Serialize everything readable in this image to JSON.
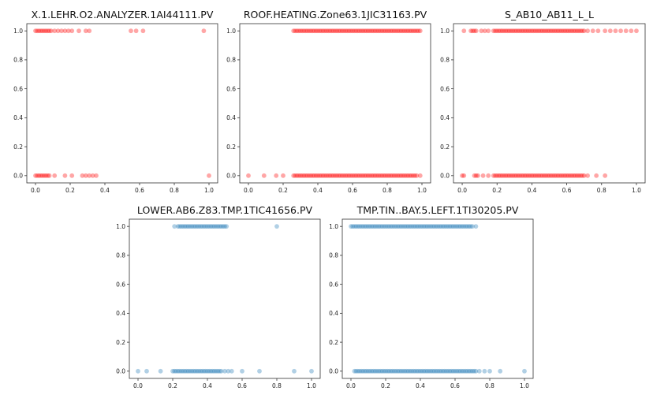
{
  "colors": {
    "red": "#ff0000",
    "blue": "#1f77b4",
    "frame": "#333333"
  },
  "chart_data": [
    {
      "type": "scatter",
      "title": "X.1.LEHR.O2.ANALYZER.1AI44111.PV",
      "color": "#ff0000",
      "xlim": [
        -0.05,
        1.05
      ],
      "ylim": [
        -0.05,
        1.05
      ],
      "xticks": [
        0.0,
        0.2,
        0.4,
        0.6,
        0.8,
        1.0
      ],
      "xtick_labels": [
        "0.0",
        "0.2",
        "0.4",
        "0.6",
        "0.8",
        "1.0"
      ],
      "yticks": [
        0.0,
        0.2,
        0.4,
        0.6,
        0.8,
        1.0
      ],
      "ytick_labels": [
        "0.0",
        "0.2",
        "0.4",
        "0.6",
        "0.8",
        "1.0"
      ],
      "series": [
        {
          "y": 1,
          "dense": [
            [
              0.0,
              0.08
            ]
          ],
          "x": [
            0.09,
            0.11,
            0.13,
            0.15,
            0.17,
            0.19,
            0.21,
            0.25,
            0.29,
            0.31,
            0.55,
            0.58,
            0.62,
            0.97
          ]
        },
        {
          "y": 0,
          "dense": [
            [
              0.0,
              0.07
            ]
          ],
          "x": [
            0.08,
            0.11,
            0.17,
            0.21,
            0.27,
            0.29,
            0.31,
            0.33,
            0.35,
            1.0
          ]
        }
      ]
    },
    {
      "type": "scatter",
      "title": "ROOF.HEATING.Zone63.1JIC31163.PV",
      "color": "#ff0000",
      "xlim": [
        -0.05,
        1.05
      ],
      "ylim": [
        -0.05,
        1.05
      ],
      "xticks": [
        0.0,
        0.2,
        0.4,
        0.6,
        0.8,
        1.0
      ],
      "xtick_labels": [
        "0.0",
        "0.2",
        "0.4",
        "0.6",
        "0.8",
        "1.0"
      ],
      "yticks": [
        0.0,
        0.2,
        0.4,
        0.6,
        0.8,
        1.0
      ],
      "ytick_labels": [
        "0.0",
        "0.2",
        "0.4",
        "0.6",
        "0.8",
        "1.0"
      ],
      "series": [
        {
          "y": 1,
          "dense": [
            [
              0.26,
              0.99
            ]
          ],
          "x": []
        },
        {
          "y": 0,
          "dense": [
            [
              0.26,
              0.96
            ]
          ],
          "x": [
            0.0,
            0.09,
            0.16,
            0.2,
            0.97,
            0.99
          ]
        }
      ]
    },
    {
      "type": "scatter",
      "title": "S_AB10_AB11_L_L",
      "color": "#ff0000",
      "xlim": [
        -0.05,
        1.05
      ],
      "ylim": [
        -0.05,
        1.05
      ],
      "xticks": [
        0.0,
        0.2,
        0.4,
        0.6,
        0.8,
        1.0
      ],
      "xtick_labels": [
        "0.0",
        "0.2",
        "0.4",
        "0.6",
        "0.8",
        "1.0"
      ],
      "yticks": [
        0.0,
        0.2,
        0.4,
        0.6,
        0.8,
        1.0
      ],
      "ytick_labels": [
        "0.0",
        "0.2",
        "0.4",
        "0.6",
        "0.8",
        "1.0"
      ],
      "series": [
        {
          "y": 1,
          "dense": [
            [
              0.05,
              0.08
            ],
            [
              0.18,
              0.7
            ]
          ],
          "x": [
            0.01,
            0.11,
            0.13,
            0.15,
            0.72,
            0.75,
            0.78,
            0.82,
            0.85,
            0.88,
            0.91,
            0.94,
            0.97,
            1.0
          ]
        },
        {
          "y": 0,
          "dense": [
            [
              0.07,
              0.09
            ],
            [
              0.18,
              0.7
            ]
          ],
          "x": [
            0.0,
            0.01,
            0.12,
            0.15,
            0.72,
            0.77,
            0.82
          ]
        }
      ]
    },
    {
      "type": "scatter",
      "title": "LOWER.AB6.Z83.TMP.1TIC41656.PV",
      "color": "#1f77b4",
      "xlim": [
        -0.05,
        1.05
      ],
      "ylim": [
        -0.05,
        1.05
      ],
      "xticks": [
        0.0,
        0.2,
        0.4,
        0.6,
        0.8,
        1.0
      ],
      "xtick_labels": [
        "0.0",
        "0.2",
        "0.4",
        "0.6",
        "0.8",
        "1.0"
      ],
      "yticks": [
        0.0,
        0.2,
        0.4,
        0.6,
        0.8,
        1.0
      ],
      "ytick_labels": [
        "0.0",
        "0.2",
        "0.4",
        "0.6",
        "0.8",
        "1.0"
      ],
      "series": [
        {
          "y": 1,
          "dense": [
            [
              0.23,
              0.51
            ]
          ],
          "x": [
            0.21,
            0.8
          ]
        },
        {
          "y": 0,
          "dense": [
            [
              0.21,
              0.48
            ]
          ],
          "x": [
            0.0,
            0.05,
            0.13,
            0.2,
            0.5,
            0.52,
            0.54,
            0.6,
            0.7,
            0.9,
            1.0
          ]
        }
      ]
    },
    {
      "type": "scatter",
      "title": "TMP.TIN..BAY.5.LEFT.1TI30205.PV",
      "color": "#1f77b4",
      "xlim": [
        -0.05,
        1.05
      ],
      "ylim": [
        -0.05,
        1.05
      ],
      "xticks": [
        0.0,
        0.2,
        0.4,
        0.6,
        0.8,
        1.0
      ],
      "xtick_labels": [
        "0.0",
        "0.2",
        "0.4",
        "0.6",
        "0.8",
        "1.0"
      ],
      "yticks": [
        0.0,
        0.2,
        0.4,
        0.6,
        0.8,
        1.0
      ],
      "ytick_labels": [
        "0.0",
        "0.2",
        "0.4",
        "0.6",
        "0.8",
        "1.0"
      ],
      "series": [
        {
          "y": 1,
          "dense": [
            [
              0.0,
              0.7
            ]
          ],
          "x": [
            0.72
          ]
        },
        {
          "y": 0,
          "dense": [
            [
              0.02,
              0.72
            ]
          ],
          "x": [
            0.74,
            0.77,
            0.8,
            0.86,
            1.0
          ]
        }
      ]
    }
  ]
}
